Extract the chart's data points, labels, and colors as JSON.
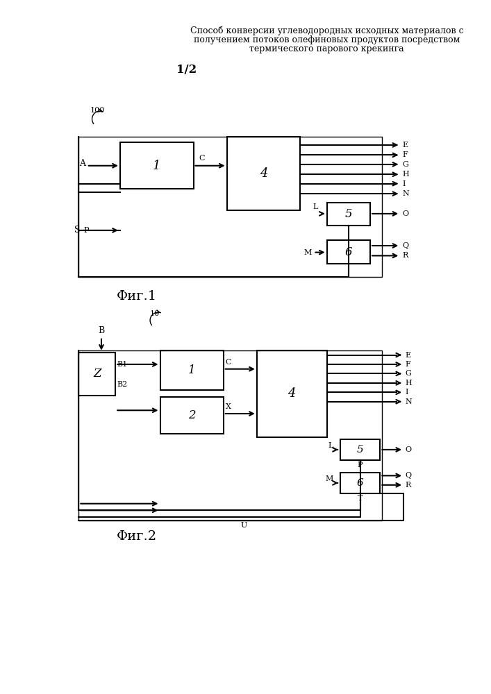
{
  "title_line1": "Способ конверсии углеводородных исходных материалов с",
  "title_line2": "получением потоков олефиновых продуктов посредством",
  "title_line3": "термического парового крекинга",
  "page_label": "1/2",
  "fig1_label": "Фиг.1",
  "fig2_label": "Фиг.2",
  "bg_color": "#ffffff",
  "box_color": "#000000",
  "line_color": "#000000",
  "text_color": "#000000"
}
